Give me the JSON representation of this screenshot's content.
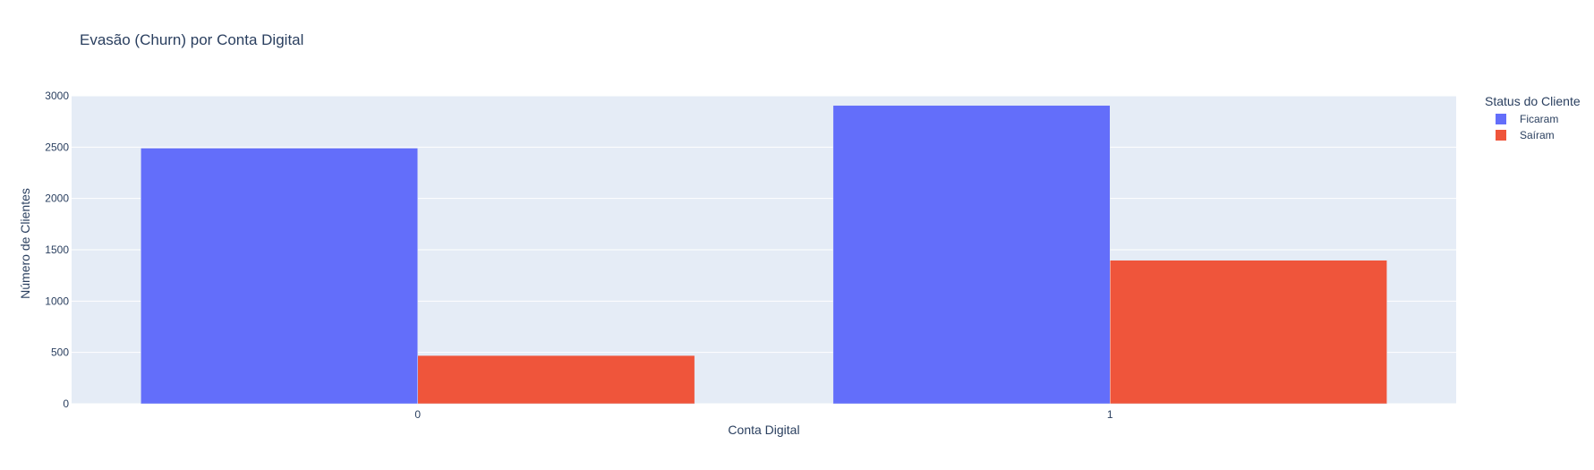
{
  "chart_data": {
    "type": "bar",
    "title": "Evasão (Churn) por Conta Digital",
    "xlabel": "Conta Digital",
    "ylabel": "Número de Clientes",
    "categories": [
      "0",
      "1"
    ],
    "series": [
      {
        "name": "Ficaram",
        "values": [
          2490,
          2906
        ],
        "color": "#636efa"
      },
      {
        "name": "Saíram",
        "values": [
          470,
          1398
        ],
        "color": "#ef553b"
      }
    ],
    "ylim": [
      0,
      3000
    ],
    "yticks": [
      0,
      500,
      1000,
      1500,
      2000,
      2500,
      3000
    ],
    "grid": true,
    "plot_background": "#e5ecf6",
    "legend": {
      "title": "Status do Cliente",
      "position": "top-right"
    }
  }
}
